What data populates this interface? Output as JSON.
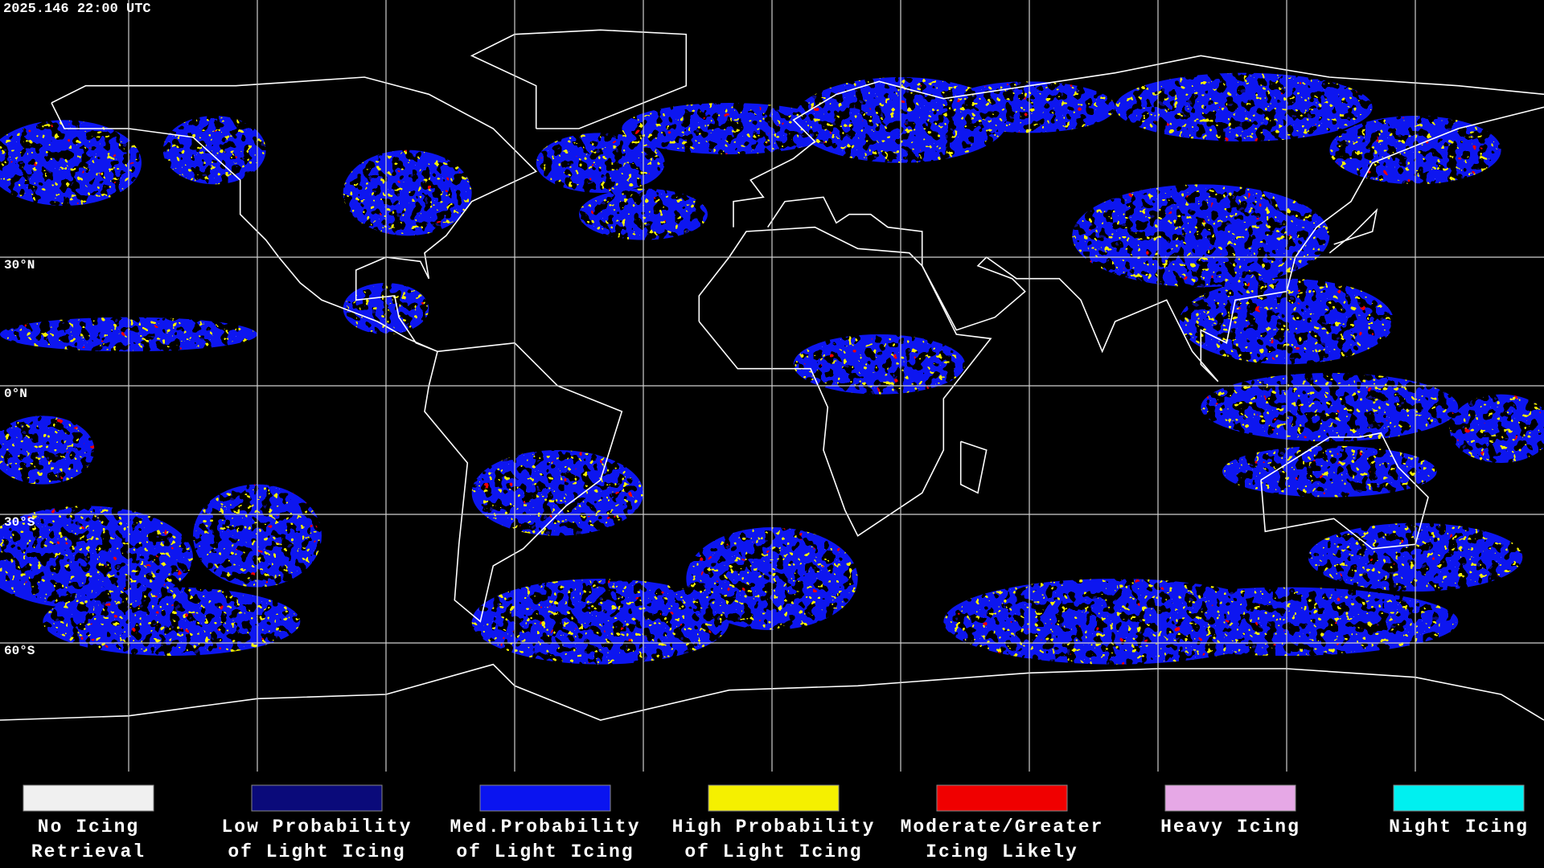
{
  "header": {
    "timestamp": "2025.146 22:00 UTC"
  },
  "map": {
    "latitude_labels": [
      "30°N",
      "0°N",
      "30°S",
      "60°S"
    ]
  },
  "legend": {
    "items": [
      {
        "label_lines": [
          "No Icing",
          "Retrieval"
        ],
        "color": "#f0f0f0"
      },
      {
        "label_lines": [
          "Low Probability",
          "of Light Icing"
        ],
        "color": "#0a0a7a"
      },
      {
        "label_lines": [
          "Med.Probability",
          "of Light Icing"
        ],
        "color": "#0a14f0"
      },
      {
        "label_lines": [
          "High Probability",
          "of Light Icing"
        ],
        "color": "#f5f000"
      },
      {
        "label_lines": [
          "Moderate/Greater",
          "Icing Likely"
        ],
        "color": "#f00000"
      },
      {
        "label_lines": [
          "Heavy Icing"
        ],
        "color": "#e6a8e6"
      },
      {
        "label_lines": [
          "Night Icing"
        ],
        "color": "#00f0f0"
      }
    ]
  }
}
